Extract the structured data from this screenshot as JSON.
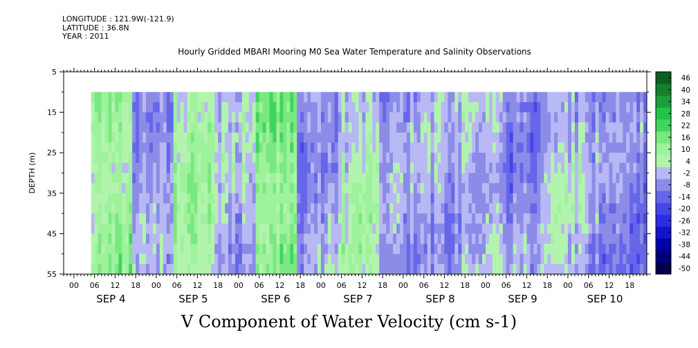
{
  "header": {
    "longitude": "LONGITUDE : 121.9W(-121.9)",
    "latitude": "LATITUDE : 36.8N",
    "year": "YEAR : 2011"
  },
  "chart_data": {
    "type": "heatmap",
    "title": "Hourly Gridded MBARI Mooring M0 Sea Water Temperature and Salinity Observations",
    "variable_label": "V Component of Water Velocity (cm s-1)",
    "ylabel": "DEPTH (m)",
    "y_range": [
      5,
      55
    ],
    "y_ticks": [
      5,
      15,
      25,
      35,
      45,
      55
    ],
    "y_inverted": true,
    "data_depth_range": [
      10,
      55
    ],
    "x_range": [
      "SEP 3 21:00",
      "SEP 10 23:00"
    ],
    "x_hour_ticks": [
      "00",
      "06",
      "12",
      "18",
      "00",
      "06",
      "12",
      "18",
      "00",
      "06",
      "12",
      "18",
      "00",
      "06",
      "12",
      "18",
      "00",
      "06",
      "12",
      "18",
      "00",
      "06",
      "12",
      "18",
      "00",
      "06",
      "12",
      "18"
    ],
    "x_day_labels": [
      "SEP 4",
      "SEP 5",
      "SEP 6",
      "SEP 7",
      "SEP 8",
      "SEP 9",
      "SEP 10"
    ],
    "data_start": "SEP 4 05:00",
    "colorbar_levels": [
      -50,
      -44,
      -38,
      -32,
      -26,
      -20,
      -14,
      -8,
      -2,
      4,
      10,
      16,
      22,
      28,
      34,
      40,
      46
    ],
    "colorbar_labels": [
      "46",
      "40",
      "34",
      "28",
      "22",
      "16",
      "10",
      "4",
      "-2",
      "-8",
      "-14",
      "-20",
      "-26",
      "-32",
      "-38",
      "-44",
      "-50"
    ],
    "colors": {
      "strong_positive": "#1e9e3a",
      "positive": "#3fd65f",
      "weak_positive": "#9ef29b",
      "weak_negative": "#b8b8f4",
      "negative": "#8c8ce8",
      "strong_negative": "#00007a"
    },
    "column_means_by_period": [
      {
        "period": "SEP 4 05-12",
        "mean_v": 12
      },
      {
        "period": "SEP 4 12-24",
        "mean_v": -2
      },
      {
        "period": "SEP 5 00-12",
        "mean_v": 10
      },
      {
        "period": "SEP 5 12-24",
        "mean_v": 2
      },
      {
        "period": "SEP 6 00-12",
        "mean_v": 16
      },
      {
        "period": "SEP 6 12-24",
        "mean_v": -4
      },
      {
        "period": "SEP 7 00-12",
        "mean_v": 6
      },
      {
        "period": "SEP 7 12-24",
        "mean_v": -4
      },
      {
        "period": "SEP 8 00-12",
        "mean_v": -2
      },
      {
        "period": "SEP 8 12-24",
        "mean_v": 2
      },
      {
        "period": "SEP 9 00-12",
        "mean_v": -6
      },
      {
        "period": "SEP 9 12-24",
        "mean_v": 2
      },
      {
        "period": "SEP 10 00-12",
        "mean_v": -4
      },
      {
        "period": "SEP 10 12-24",
        "mean_v": -6
      }
    ]
  }
}
